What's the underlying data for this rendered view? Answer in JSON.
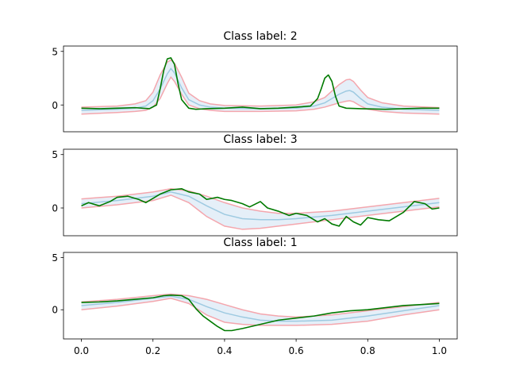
{
  "colors": {
    "band_fill": "#cfe2f3",
    "mean_line": "#9ecae1",
    "bound_lines": "#f4a6ad",
    "sample_line": "#007a00",
    "axes": "#000000"
  },
  "x_ticks": [
    "0.0",
    "0.2",
    "0.4",
    "0.6",
    "0.8",
    "1.0"
  ],
  "chart_data": [
    {
      "type": "line",
      "title": "Class label: 2",
      "xlim": [
        -0.05,
        1.05
      ],
      "ylim": [
        -2.5,
        5.5
      ],
      "y_ticks": [
        "5",
        "0"
      ],
      "show_x_ticks": false,
      "mean": {
        "x": [
          0,
          0.1,
          0.15,
          0.18,
          0.2,
          0.22,
          0.24,
          0.25,
          0.26,
          0.28,
          0.3,
          0.33,
          0.36,
          0.4,
          0.5,
          0.6,
          0.65,
          0.68,
          0.7,
          0.72,
          0.74,
          0.75,
          0.76,
          0.78,
          0.8,
          0.84,
          0.9,
          1.0
        ],
        "y": [
          -0.5,
          -0.4,
          -0.3,
          -0.1,
          0.4,
          1.5,
          2.9,
          3.4,
          3.0,
          1.6,
          0.5,
          0.0,
          -0.2,
          -0.3,
          -0.35,
          -0.3,
          -0.1,
          0.2,
          0.6,
          1.0,
          1.3,
          1.35,
          1.2,
          0.6,
          0.1,
          -0.2,
          -0.4,
          -0.5
        ]
      },
      "upper": {
        "x": [
          0,
          0.1,
          0.15,
          0.18,
          0.2,
          0.22,
          0.24,
          0.25,
          0.26,
          0.28,
          0.3,
          0.33,
          0.36,
          0.4,
          0.5,
          0.6,
          0.65,
          0.68,
          0.7,
          0.72,
          0.74,
          0.75,
          0.76,
          0.78,
          0.8,
          0.84,
          0.9,
          1.0
        ],
        "y": [
          -0.2,
          -0.1,
          0.1,
          0.4,
          1.2,
          2.8,
          4.0,
          4.2,
          3.9,
          2.6,
          1.1,
          0.4,
          0.1,
          -0.05,
          -0.1,
          0.0,
          0.3,
          0.7,
          1.3,
          1.9,
          2.35,
          2.4,
          2.2,
          1.4,
          0.7,
          0.2,
          -0.1,
          -0.25
        ]
      },
      "lower": {
        "x": [
          0,
          0.1,
          0.15,
          0.18,
          0.2,
          0.22,
          0.24,
          0.25,
          0.26,
          0.28,
          0.3,
          0.33,
          0.36,
          0.4,
          0.5,
          0.6,
          0.65,
          0.68,
          0.7,
          0.72,
          0.74,
          0.75,
          0.76,
          0.78,
          0.8,
          0.84,
          0.9,
          1.0
        ],
        "y": [
          -0.85,
          -0.7,
          -0.6,
          -0.5,
          -0.2,
          0.6,
          2.0,
          2.6,
          2.2,
          1.0,
          0.0,
          -0.35,
          -0.5,
          -0.6,
          -0.6,
          -0.55,
          -0.4,
          -0.2,
          0.0,
          0.2,
          0.35,
          0.4,
          0.3,
          -0.1,
          -0.4,
          -0.6,
          -0.75,
          -0.85
        ]
      },
      "sample": {
        "x": [
          0,
          0.05,
          0.1,
          0.15,
          0.19,
          0.21,
          0.22,
          0.23,
          0.24,
          0.25,
          0.26,
          0.27,
          0.28,
          0.3,
          0.32,
          0.35,
          0.4,
          0.45,
          0.5,
          0.55,
          0.6,
          0.64,
          0.66,
          0.67,
          0.68,
          0.69,
          0.7,
          0.71,
          0.72,
          0.74,
          0.78,
          0.85,
          0.9,
          0.95,
          1.0
        ],
        "y": [
          -0.3,
          -0.35,
          -0.3,
          -0.25,
          -0.35,
          0.0,
          1.5,
          3.2,
          4.3,
          4.4,
          3.8,
          2.0,
          0.5,
          -0.3,
          -0.4,
          -0.35,
          -0.3,
          -0.2,
          -0.35,
          -0.3,
          -0.2,
          -0.1,
          0.6,
          1.5,
          2.5,
          2.8,
          2.2,
          0.8,
          -0.1,
          -0.3,
          -0.35,
          -0.4,
          -0.35,
          -0.3,
          -0.3
        ]
      }
    },
    {
      "type": "line",
      "title": "Class label: 3",
      "xlim": [
        -0.05,
        1.05
      ],
      "ylim": [
        -2.6,
        5.5
      ],
      "y_ticks": [
        "5",
        "0"
      ],
      "show_x_ticks": false,
      "mean": {
        "x": [
          0,
          0.1,
          0.2,
          0.25,
          0.3,
          0.35,
          0.4,
          0.45,
          0.5,
          0.55,
          0.6,
          0.7,
          0.8,
          0.9,
          1.0
        ],
        "y": [
          0.4,
          0.7,
          1.1,
          1.5,
          1.1,
          0.2,
          -0.6,
          -1.0,
          -1.1,
          -1.1,
          -1.0,
          -0.7,
          -0.3,
          0.1,
          0.5
        ]
      },
      "upper": {
        "x": [
          0,
          0.1,
          0.2,
          0.25,
          0.3,
          0.35,
          0.4,
          0.45,
          0.5,
          0.55,
          0.6,
          0.7,
          0.8,
          0.9,
          1.0
        ],
        "y": [
          0.85,
          1.1,
          1.5,
          1.8,
          1.6,
          1.1,
          0.5,
          0.0,
          -0.3,
          -0.5,
          -0.5,
          -0.3,
          0.1,
          0.5,
          0.9
        ]
      },
      "lower": {
        "x": [
          0,
          0.1,
          0.2,
          0.25,
          0.3,
          0.35,
          0.4,
          0.45,
          0.5,
          0.55,
          0.6,
          0.7,
          0.8,
          0.9,
          1.0
        ],
        "y": [
          0.0,
          0.3,
          0.7,
          1.2,
          0.5,
          -0.8,
          -1.7,
          -2.0,
          -1.9,
          -1.7,
          -1.5,
          -1.1,
          -0.7,
          -0.3,
          0.1
        ]
      },
      "sample": {
        "x": [
          0,
          0.02,
          0.05,
          0.08,
          0.1,
          0.13,
          0.16,
          0.18,
          0.2,
          0.22,
          0.25,
          0.28,
          0.3,
          0.33,
          0.35,
          0.38,
          0.4,
          0.42,
          0.45,
          0.47,
          0.5,
          0.52,
          0.55,
          0.58,
          0.6,
          0.63,
          0.66,
          0.68,
          0.7,
          0.72,
          0.74,
          0.76,
          0.78,
          0.8,
          0.83,
          0.86,
          0.88,
          0.9,
          0.93,
          0.96,
          0.98,
          1.0
        ],
        "y": [
          0.2,
          0.5,
          0.2,
          0.6,
          1.0,
          1.1,
          0.8,
          0.5,
          0.9,
          1.3,
          1.7,
          1.8,
          1.5,
          1.3,
          0.8,
          1.0,
          0.8,
          0.7,
          0.4,
          0.1,
          0.6,
          0.0,
          -0.3,
          -0.7,
          -0.5,
          -0.7,
          -1.3,
          -1.0,
          -1.5,
          -1.7,
          -0.8,
          -1.3,
          -1.6,
          -0.9,
          -1.1,
          -1.2,
          -0.8,
          -0.4,
          0.6,
          0.4,
          -0.1,
          0.0
        ]
      }
    },
    {
      "type": "line",
      "title": "Class label: 1",
      "xlim": [
        -0.05,
        1.05
      ],
      "ylim": [
        -2.8,
        5.5
      ],
      "y_ticks": [
        "5",
        "0"
      ],
      "show_x_ticks": true,
      "mean": {
        "x": [
          0,
          0.1,
          0.2,
          0.25,
          0.3,
          0.35,
          0.4,
          0.45,
          0.5,
          0.55,
          0.6,
          0.7,
          0.8,
          0.9,
          1.0
        ],
        "y": [
          0.4,
          0.7,
          1.1,
          1.3,
          1.0,
          0.3,
          -0.3,
          -0.7,
          -1.0,
          -1.1,
          -1.1,
          -1.0,
          -0.6,
          -0.1,
          0.4
        ]
      },
      "upper": {
        "x": [
          0,
          0.1,
          0.2,
          0.25,
          0.3,
          0.35,
          0.4,
          0.45,
          0.5,
          0.55,
          0.6,
          0.7,
          0.8,
          0.9,
          1.0
        ],
        "y": [
          0.75,
          1.0,
          1.35,
          1.5,
          1.35,
          1.0,
          0.5,
          0.0,
          -0.4,
          -0.6,
          -0.7,
          -0.5,
          -0.1,
          0.3,
          0.7
        ]
      },
      "lower": {
        "x": [
          0,
          0.1,
          0.2,
          0.25,
          0.3,
          0.35,
          0.4,
          0.45,
          0.5,
          0.55,
          0.6,
          0.7,
          0.8,
          0.9,
          1.0
        ],
        "y": [
          0.0,
          0.35,
          0.8,
          1.1,
          0.6,
          -0.5,
          -1.2,
          -1.4,
          -1.5,
          -1.5,
          -1.5,
          -1.4,
          -1.1,
          -0.5,
          0.0
        ]
      },
      "sample": {
        "x": [
          0,
          0.05,
          0.1,
          0.15,
          0.2,
          0.23,
          0.25,
          0.28,
          0.3,
          0.32,
          0.34,
          0.36,
          0.38,
          0.4,
          0.42,
          0.45,
          0.5,
          0.55,
          0.6,
          0.65,
          0.7,
          0.75,
          0.8,
          0.85,
          0.9,
          0.95,
          1.0
        ],
        "y": [
          0.7,
          0.75,
          0.85,
          1.0,
          1.15,
          1.35,
          1.4,
          1.35,
          1.0,
          0.1,
          -0.6,
          -1.1,
          -1.6,
          -2.0,
          -2.0,
          -1.8,
          -1.4,
          -1.0,
          -0.8,
          -0.6,
          -0.3,
          -0.1,
          0.0,
          0.2,
          0.4,
          0.5,
          0.6
        ]
      }
    }
  ]
}
